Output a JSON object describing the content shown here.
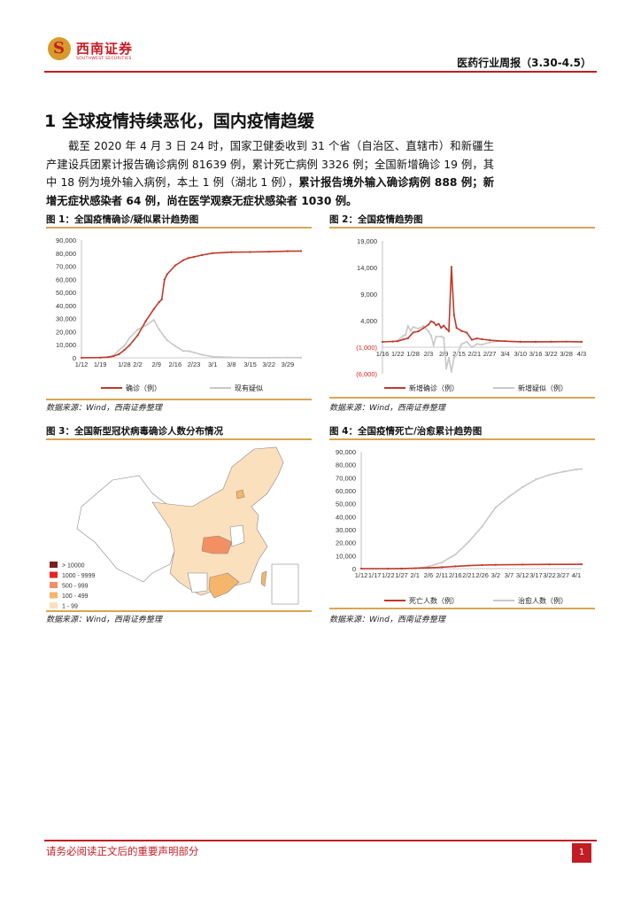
{
  "header": {
    "logo_cn": "西南证券",
    "logo_en": "SOUTHWEST SECURITIES",
    "title": "医药行业周报（3.30-4.5）"
  },
  "section": {
    "title": "1  全球疫情持续恶化，国内疫情趋缓"
  },
  "paragraph": {
    "normal": "截至 2020 年 4 月 3 日 24 时，国家卫健委收到 31 个省（自治区、直辖市）和新疆生产建设兵团累计报告确诊病例 81639 例，累计死亡病例 3326 例；全国新增确诊 19 例，其中 18 例为境外输入病例，本土 1 例（湖北 1 例），",
    "bold": "累计报告境外输入确诊病例 888 例；新增无症状感染者 64 例，尚在医学观察无症状感染者 1030 例。"
  },
  "figures": [
    {
      "title": "图 1：全国疫情确诊/疑似累计趋势图",
      "source": "数据来源：Wind，西南证券整理"
    },
    {
      "title": "图 2：全国疫情趋势图",
      "source": "数据来源：Wind，西南证券整理"
    },
    {
      "title": "图 3：全国新型冠状病毒确诊人数分布情况",
      "source": "数据来源：Wind，西南证券整理"
    },
    {
      "title": "图 4：全国疫情死亡/治愈累计趋势图",
      "source": "数据来源：Wind，西南证券整理"
    }
  ],
  "chart_data": [
    {
      "type": "line",
      "ylim": [
        0,
        90000
      ],
      "yticks": [
        "0",
        "10,000",
        "20,000",
        "30,000",
        "40,000",
        "50,000",
        "60,000",
        "70,000",
        "80,000",
        "90,000"
      ],
      "xticks": [
        "1/12",
        "1/19",
        "1/28",
        "2/2",
        "2/9",
        "2/16",
        "2/23",
        "3/1",
        "3/8",
        "3/15",
        "3/22",
        "3/29"
      ],
      "series": [
        {
          "name": "确诊（例）",
          "color": "#c0392b",
          "x": [
            "1/12",
            "1/19",
            "1/22",
            "1/24",
            "1/26",
            "1/28",
            "1/30",
            "2/2",
            "2/5",
            "2/8",
            "2/10",
            "2/11",
            "2/12",
            "2/13",
            "2/16",
            "2/19",
            "2/21",
            "2/23",
            "2/26",
            "3/1",
            "3/8",
            "3/15",
            "3/22",
            "3/29",
            "4/3"
          ],
          "y": [
            41,
            198,
            571,
            1287,
            2744,
            5974,
            9692,
            17205,
            28018,
            37198,
            42638,
            44653,
            59804,
            63851,
            70548,
            74576,
            76288,
            77150,
            78497,
            79968,
            80735,
            80860,
            81093,
            81470,
            81639
          ]
        },
        {
          "name": "现有疑似",
          "color": "#c8c8c8",
          "x": [
            "1/19",
            "1/22",
            "1/24",
            "1/26",
            "1/28",
            "1/30",
            "2/2",
            "2/5",
            "2/8",
            "2/10",
            "2/12",
            "2/13",
            "2/16",
            "2/19",
            "2/21",
            "2/23",
            "2/26",
            "3/1",
            "3/8",
            "3/15",
            "3/22",
            "3/29",
            "4/3"
          ],
          "y": [
            0,
            393,
            1965,
            5794,
            9239,
            15238,
            21558,
            24702,
            28942,
            21675,
            16067,
            13435,
            8969,
            5248,
            5206,
            4148,
            2358,
            851,
            349,
            134,
            104,
            184,
            104
          ]
        }
      ]
    },
    {
      "type": "line",
      "ylim": [
        -6000,
        19000
      ],
      "yticks": [
        "(6,000)",
        "(1,000)",
        "4,000",
        "9,000",
        "14,000",
        "19,000"
      ],
      "xticks": [
        "1/16",
        "1/22",
        "1/28",
        "2/3",
        "2/9",
        "2/15",
        "2/21",
        "2/27",
        "3/4",
        "3/10",
        "3/16",
        "3/22",
        "3/28",
        "4/3"
      ],
      "series": [
        {
          "name": "新增确诊（例）",
          "color": "#c0392b",
          "x": [
            "1/16",
            "1/20",
            "1/22",
            "1/24",
            "1/26",
            "1/28",
            "1/30",
            "2/1",
            "2/3",
            "2/4",
            "2/5",
            "2/6",
            "2/7",
            "2/8",
            "2/9",
            "2/10",
            "2/11",
            "2/12",
            "2/13",
            "2/14",
            "2/16",
            "2/18",
            "2/20",
            "2/22",
            "2/24",
            "2/27",
            "3/1",
            "3/4",
            "3/10",
            "3/16",
            "3/22",
            "3/28",
            "4/3"
          ],
          "y": [
            4,
            77,
            131,
            444,
            688,
            1771,
            1982,
            2590,
            3235,
            3887,
            3694,
            3143,
            3399,
            2656,
            3062,
            2478,
            2015,
            14108,
            5090,
            2641,
            2048,
            1749,
            394,
            648,
            508,
            327,
            202,
            139,
            24,
            21,
            39,
            54,
            19
          ]
        },
        {
          "name": "新增疑似（例）",
          "color": "#c8c8c8",
          "x": [
            "1/20",
            "1/22",
            "1/24",
            "1/25",
            "1/26",
            "1/27",
            "1/28",
            "1/30",
            "2/1",
            "2/3",
            "2/4",
            "2/5",
            "2/6",
            "2/8",
            "2/9",
            "2/10",
            "2/11",
            "2/12",
            "2/13",
            "2/14",
            "2/16",
            "2/18",
            "2/20",
            "2/22",
            "2/24",
            "2/27",
            "3/1",
            "3/10",
            "3/22",
            "4/3"
          ],
          "y": [
            27,
            257,
            1118,
            1309,
            3000,
            2077,
            2800,
            2500,
            3000,
            2000,
            1200,
            -600,
            1000,
            1000,
            800,
            -5000,
            -3000,
            -5600,
            -3000,
            -2500,
            -400,
            0,
            -1000,
            -400,
            -500,
            -100,
            150,
            50,
            40,
            30
          ]
        }
      ]
    },
    {
      "type": "map",
      "legend": [
        "> 10000",
        "1000 - 9999",
        "500 - 999",
        "100 - 499",
        "1 - 99"
      ],
      "legend_colors": [
        "#7b1f1f",
        "#e8231f",
        "#f39063",
        "#f6b56c",
        "#fbe0bd"
      ]
    },
    {
      "type": "line",
      "ylim": [
        0,
        90000
      ],
      "yticks": [
        "0",
        "10,000",
        "20,000",
        "30,000",
        "40,000",
        "50,000",
        "60,000",
        "70,000",
        "80,000",
        "90,000"
      ],
      "xticks": [
        "1/12",
        "1/17",
        "1/22",
        "1/27",
        "2/1",
        "2/6",
        "2/11",
        "2/16",
        "2/21",
        "2/26",
        "3/2",
        "3/7",
        "3/12",
        "3/17",
        "3/22",
        "3/27",
        "4/1"
      ],
      "series": [
        {
          "name": "死亡人数（例）",
          "color": "#c0392b",
          "x": [
            "1/12",
            "1/22",
            "1/27",
            "2/1",
            "2/6",
            "2/11",
            "2/16",
            "2/21",
            "2/26",
            "3/2",
            "3/12",
            "3/22",
            "4/3"
          ],
          "y": [
            1,
            17,
            81,
            304,
            636,
            1113,
            1770,
            2345,
            2715,
            2912,
            3169,
            3261,
            3326
          ]
        },
        {
          "name": "治愈人数（例）",
          "color": "#c8c8c8",
          "x": [
            "1/12",
            "1/22",
            "1/27",
            "2/1",
            "2/6",
            "2/11",
            "2/16",
            "2/21",
            "2/26",
            "3/2",
            "3/7",
            "3/12",
            "3/17",
            "3/22",
            "3/27",
            "4/1",
            "4/3"
          ],
          "y": [
            0,
            28,
            58,
            328,
            1540,
            4740,
            10844,
            20659,
            32495,
            47204,
            55404,
            62793,
            68679,
            72244,
            74588,
            76408,
            76755
          ]
        }
      ]
    }
  ],
  "footer": {
    "disclaimer": "请务必阅读正文后的重要声明部分",
    "page": "1"
  }
}
